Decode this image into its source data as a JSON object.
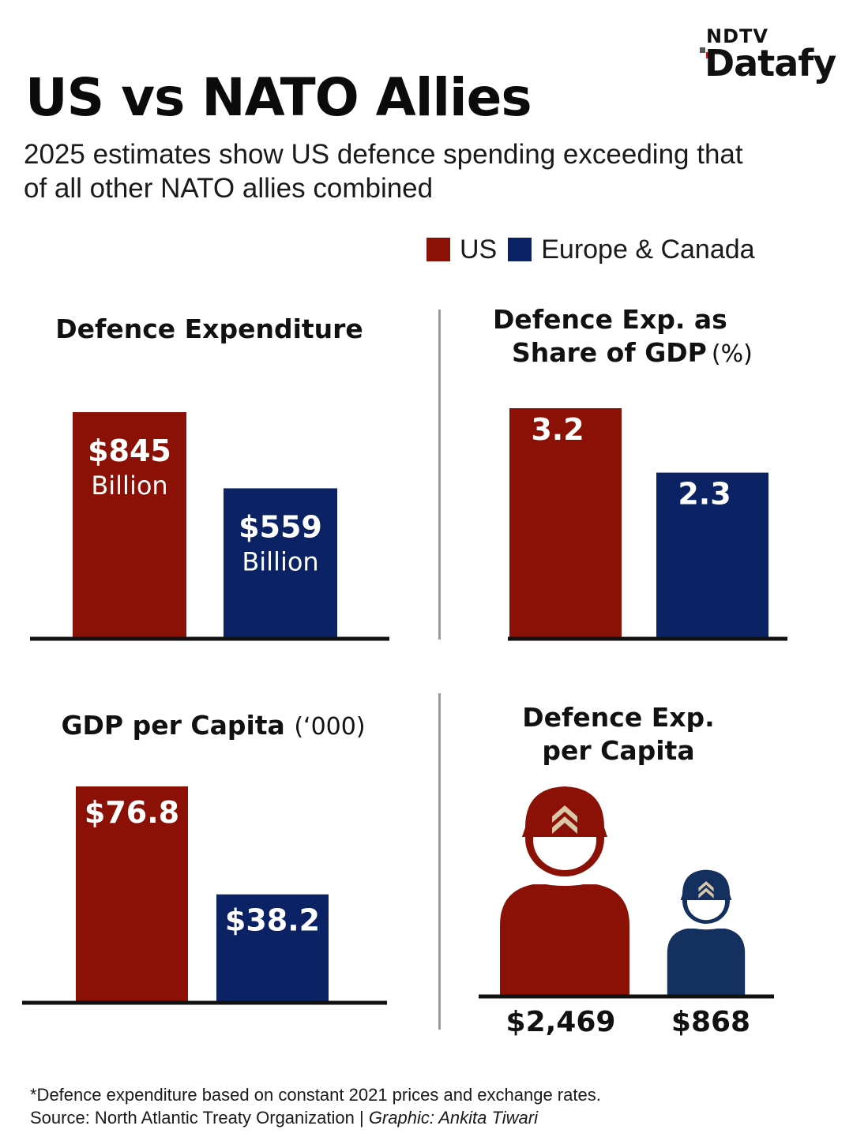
{
  "brand": {
    "ndtv": "NDTV",
    "datafy": "Datafy"
  },
  "title": "US vs NATO Allies",
  "subtitle": "2025 estimates show US defence spending exceeding that of all other NATO allies combined",
  "legend": [
    {
      "label": "US",
      "color": "#8b1106"
    },
    {
      "label": "Europe & Canada",
      "color": "#0b2365"
    }
  ],
  "colors": {
    "us": "#8b1106",
    "europe": "#0b2365",
    "axis": "#111111",
    "divider": "#9a9a9a"
  },
  "chart_data": [
    {
      "type": "bar",
      "title": "Defence Expenditure",
      "unit": "$ Billion",
      "categories": [
        "US",
        "Europe & Canada"
      ],
      "values": [
        845,
        559
      ],
      "labels": [
        {
          "amount": "$845",
          "unit": "Billion"
        },
        {
          "amount": "$559",
          "unit": "Billion"
        }
      ],
      "ylim": [
        0,
        845
      ]
    },
    {
      "type": "bar",
      "title": "Defence Exp. as Share of GDP",
      "unit": "(%)",
      "categories": [
        "US",
        "Europe & Canada"
      ],
      "values": [
        3.2,
        2.3
      ],
      "labels": [
        {
          "amount": "3.2"
        },
        {
          "amount": "2.3"
        }
      ],
      "ylim": [
        0,
        3.2
      ]
    },
    {
      "type": "bar",
      "title": "GDP per Capita",
      "unit": "(‘000)",
      "categories": [
        "US",
        "Europe & Canada"
      ],
      "values": [
        76.8,
        38.2
      ],
      "labels": [
        {
          "amount": "$76.8"
        },
        {
          "amount": "$38.2"
        }
      ],
      "ylim": [
        0,
        76.8
      ]
    },
    {
      "type": "pictogram",
      "title": "Defence Exp. per Capita",
      "categories": [
        "US",
        "Europe & Canada"
      ],
      "values": [
        2469,
        868
      ],
      "labels": [
        {
          "amount": "$2,469"
        },
        {
          "amount": "$868"
        }
      ]
    }
  ],
  "footnote": "*Defence expenditure based on constant 2021 prices and exchange rates.",
  "source": "Source: North Atlantic Treaty Organization | ",
  "credit": "Graphic: Ankita Tiwari"
}
